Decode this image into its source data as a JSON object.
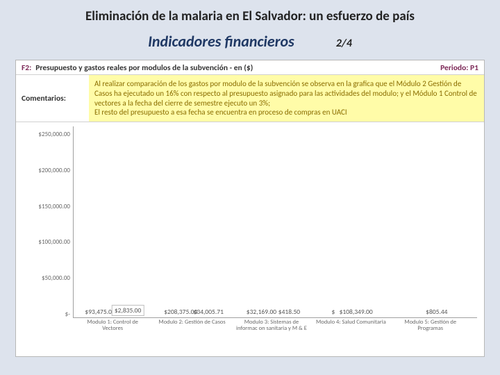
{
  "title": "Eliminación de la malaria en El Salvador: un esfuerzo de país",
  "title_fontsize": 19,
  "subtitle": "Indicadores financieros",
  "subtitle_fontsize": 22,
  "page": "2/4",
  "page_fontsize": 16,
  "background_color": "#dde3ed",
  "panel_background": "#ffffff",
  "panel_border": "#b7b7b7",
  "f2": {
    "label": "F2:",
    "text": "Presupuesto y gastos reales por modulos de la subvención - en ($)",
    "periodo_label": "Periodo: P1",
    "label_color": "#7d2a58",
    "fontsize": 11.5
  },
  "comments": {
    "label": "Comentarios:",
    "text": "Al realizar comparación de los gastos por modulo de la subvención se observa en la grafica que el Módulo 2 Gestión de Casos ha ejecutado un 16% con respecto al presupuesto asignado para las actividades del modulo;  y el Módulo 1 Control de vectores a la fecha del cierre de semestre ejecuto un 3%;\nEl resto del presupuesto a esa fecha se encuentra en proceso de compras en UACI",
    "highlight_bg": "#fffca8",
    "text_color": "#8a6d00",
    "fontsize": 11
  },
  "chart": {
    "type": "bar",
    "ylim": [
      0,
      250000
    ],
    "ytick_step": 50000,
    "yticks": [
      "$250,000.00",
      "$200,000.00",
      "$150,000.00",
      "$100,000.00",
      "$50,000.00",
      "$-"
    ],
    "budget_color": "#8a2e5c",
    "actual_color": "#cfc2d9",
    "axis_color": "#a0a0a0",
    "label_color": "#6a6a6a",
    "value_fontsize": 9.5,
    "axis_fontsize": 9,
    "categories": [
      {
        "label": "Modulo 1: Control de Vectores",
        "budget": 93475,
        "budget_label": "$93,475.00",
        "actual": 2835,
        "actual_label": "$2,835.00",
        "actual_box": true
      },
      {
        "label": "Modulo 2: Gestión de Casos",
        "budget": 208375,
        "budget_label": "$208,375.00",
        "actual": 34005.71,
        "actual_label": "$34,005.71",
        "actual_box": false
      },
      {
        "label": "Modulo 3: Sistemas de informac on sanitaria y M & E",
        "budget": 32169,
        "budget_label": "$32,169.00",
        "actual": 418.5,
        "actual_label": "$418.50",
        "actual_box": false
      },
      {
        "label": "Modulo 4: Salud Comunitaria",
        "budget": 108349,
        "budget_label": "$108,349.00",
        "actual": 0,
        "actual_label": "$",
        "actual_box": false,
        "single": true
      },
      {
        "label": "Modulo 5: Gestión de Programas",
        "budget": 0,
        "budget_label": "",
        "actual": 805.44,
        "actual_label": "$805.44",
        "actual_box": false,
        "single_actual": true
      }
    ]
  }
}
